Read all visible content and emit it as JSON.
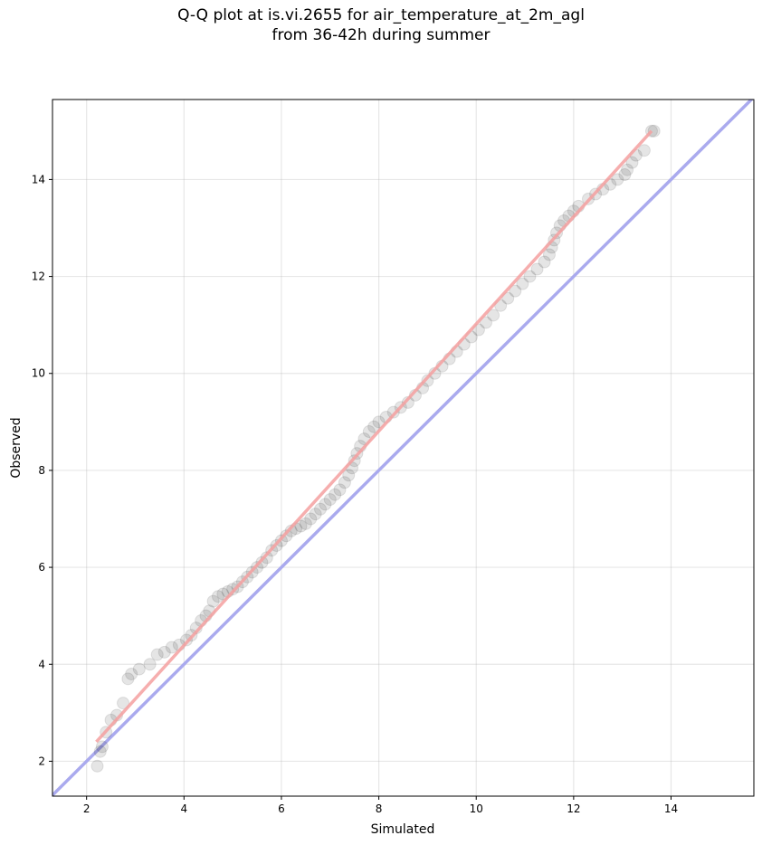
{
  "chart_data": {
    "type": "scatter",
    "title_line1": "Q-Q plot at is.vi.2655 for air_temperature_at_2m_agl",
    "title_line2": "from 36-42h during summer",
    "xlabel": "Simulated",
    "ylabel": "Observed",
    "xlim": [
      1.3,
      15.7
    ],
    "ylim": [
      1.28,
      15.65
    ],
    "xticks": [
      2,
      4,
      6,
      8,
      10,
      12,
      14
    ],
    "yticks": [
      2,
      4,
      6,
      8,
      10,
      12,
      14
    ],
    "grid": true,
    "reference_line": {
      "color": "#aaaaee",
      "x": [
        1.3,
        15.7
      ],
      "y": [
        1.3,
        15.7
      ]
    },
    "fit_line": {
      "color": "#f4a0a0",
      "x": [
        2.2,
        13.6
      ],
      "y": [
        2.4,
        15.0
      ]
    },
    "points_color": "#000000",
    "points": [
      [
        2.22,
        1.9
      ],
      [
        2.28,
        2.2
      ],
      [
        2.32,
        2.3
      ],
      [
        2.4,
        2.6
      ],
      [
        2.5,
        2.85
      ],
      [
        2.62,
        2.95
      ],
      [
        2.75,
        3.2
      ],
      [
        2.85,
        3.7
      ],
      [
        2.92,
        3.8
      ],
      [
        3.08,
        3.9
      ],
      [
        3.3,
        4.0
      ],
      [
        3.45,
        4.2
      ],
      [
        3.6,
        4.25
      ],
      [
        3.75,
        4.35
      ],
      [
        3.9,
        4.4
      ],
      [
        4.05,
        4.5
      ],
      [
        4.15,
        4.6
      ],
      [
        4.25,
        4.75
      ],
      [
        4.35,
        4.9
      ],
      [
        4.45,
        5.0
      ],
      [
        4.52,
        5.1
      ],
      [
        4.6,
        5.3
      ],
      [
        4.7,
        5.4
      ],
      [
        4.8,
        5.45
      ],
      [
        4.9,
        5.5
      ],
      [
        5.0,
        5.55
      ],
      [
        5.1,
        5.6
      ],
      [
        5.2,
        5.7
      ],
      [
        5.3,
        5.8
      ],
      [
        5.4,
        5.9
      ],
      [
        5.5,
        6.0
      ],
      [
        5.6,
        6.1
      ],
      [
        5.7,
        6.2
      ],
      [
        5.8,
        6.35
      ],
      [
        5.9,
        6.45
      ],
      [
        6.0,
        6.55
      ],
      [
        6.1,
        6.65
      ],
      [
        6.2,
        6.75
      ],
      [
        6.3,
        6.8
      ],
      [
        6.4,
        6.85
      ],
      [
        6.5,
        6.9
      ],
      [
        6.6,
        7.0
      ],
      [
        6.7,
        7.1
      ],
      [
        6.8,
        7.2
      ],
      [
        6.9,
        7.3
      ],
      [
        7.0,
        7.4
      ],
      [
        7.1,
        7.5
      ],
      [
        7.2,
        7.6
      ],
      [
        7.3,
        7.75
      ],
      [
        7.38,
        7.9
      ],
      [
        7.45,
        8.05
      ],
      [
        7.5,
        8.2
      ],
      [
        7.55,
        8.35
      ],
      [
        7.62,
        8.5
      ],
      [
        7.7,
        8.65
      ],
      [
        7.8,
        8.8
      ],
      [
        7.9,
        8.9
      ],
      [
        8.0,
        9.0
      ],
      [
        8.15,
        9.1
      ],
      [
        8.3,
        9.2
      ],
      [
        8.45,
        9.3
      ],
      [
        8.6,
        9.4
      ],
      [
        8.75,
        9.55
      ],
      [
        8.9,
        9.7
      ],
      [
        9.0,
        9.85
      ],
      [
        9.15,
        10.0
      ],
      [
        9.3,
        10.15
      ],
      [
        9.45,
        10.3
      ],
      [
        9.6,
        10.45
      ],
      [
        9.75,
        10.6
      ],
      [
        9.9,
        10.75
      ],
      [
        10.05,
        10.9
      ],
      [
        10.2,
        11.05
      ],
      [
        10.35,
        11.2
      ],
      [
        10.5,
        11.4
      ],
      [
        10.65,
        11.55
      ],
      [
        10.8,
        11.7
      ],
      [
        10.95,
        11.85
      ],
      [
        11.1,
        12.0
      ],
      [
        11.25,
        12.15
      ],
      [
        11.4,
        12.3
      ],
      [
        11.5,
        12.45
      ],
      [
        11.55,
        12.6
      ],
      [
        11.6,
        12.75
      ],
      [
        11.65,
        12.9
      ],
      [
        11.72,
        13.05
      ],
      [
        11.8,
        13.15
      ],
      [
        11.9,
        13.25
      ],
      [
        12.0,
        13.35
      ],
      [
        12.1,
        13.45
      ],
      [
        12.3,
        13.6
      ],
      [
        12.45,
        13.7
      ],
      [
        12.6,
        13.8
      ],
      [
        12.75,
        13.9
      ],
      [
        12.9,
        14.0
      ],
      [
        13.05,
        14.1
      ],
      [
        13.1,
        14.2
      ],
      [
        13.2,
        14.35
      ],
      [
        13.28,
        14.5
      ],
      [
        13.45,
        14.6
      ],
      [
        13.6,
        15.0
      ],
      [
        13.65,
        15.0
      ]
    ]
  }
}
